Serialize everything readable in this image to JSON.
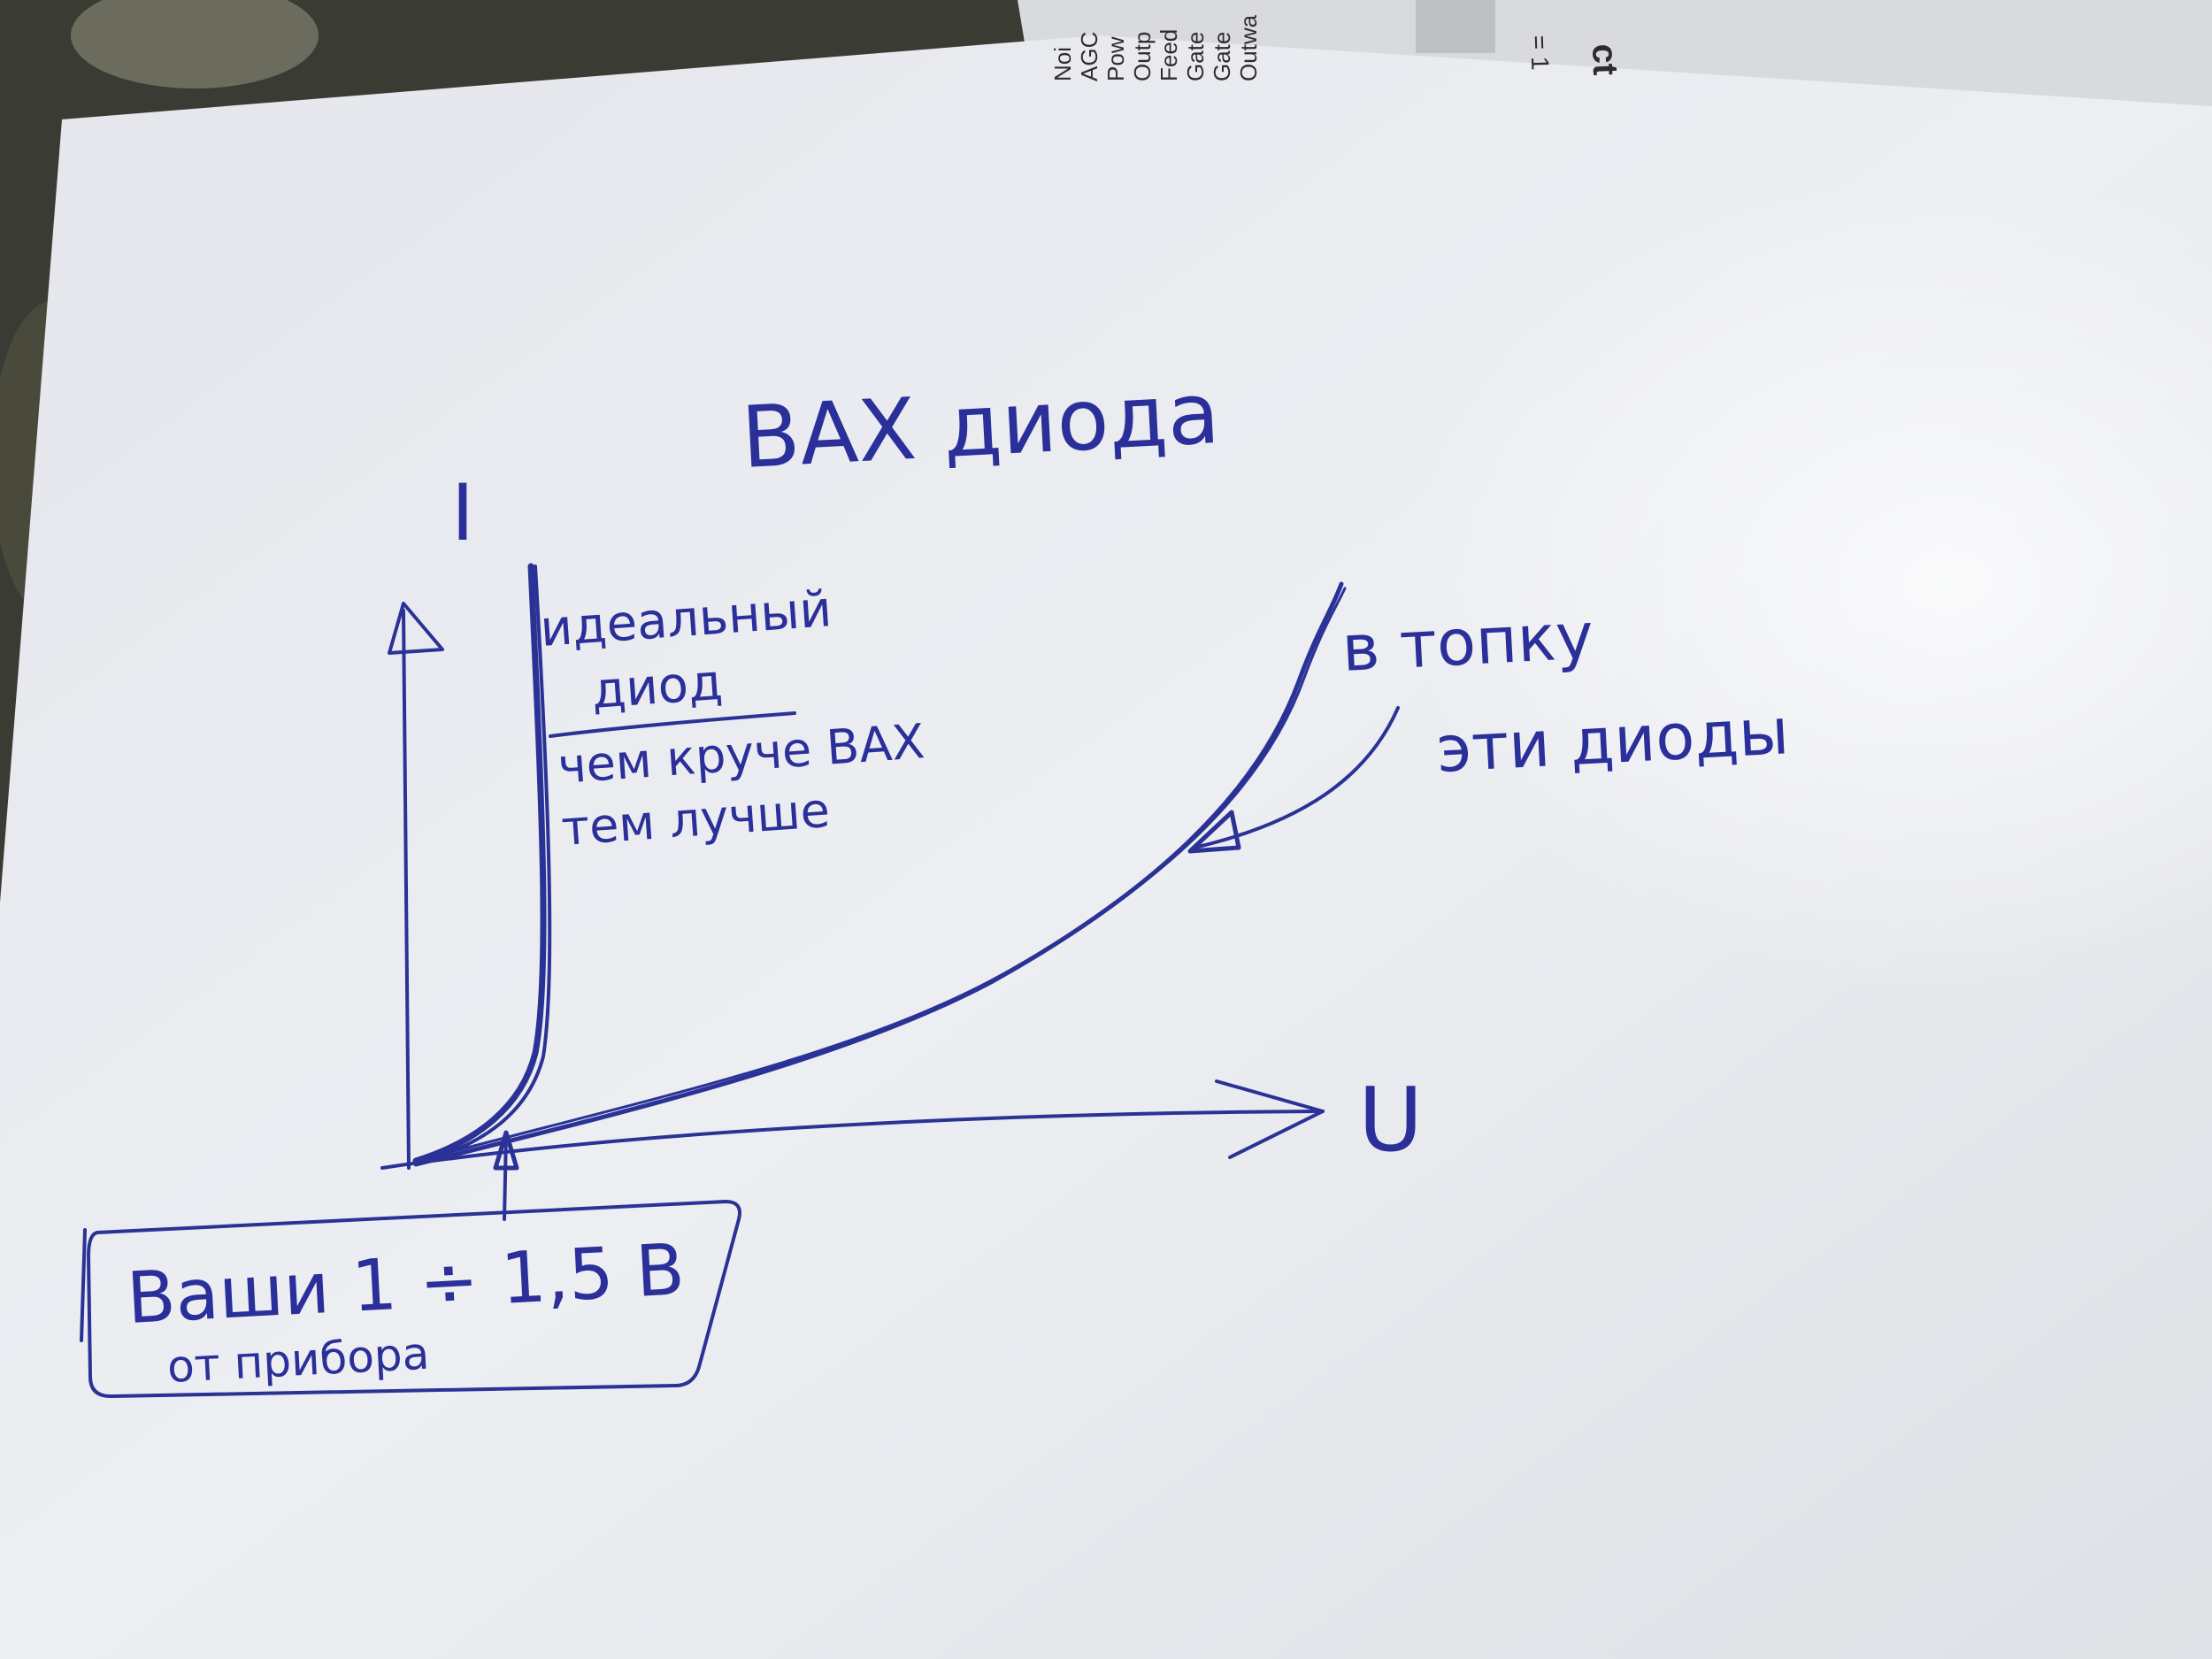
{
  "photo": {
    "background_color": "#3a3b33",
    "paper_color": "#e9ebf0",
    "ink_color": "#2b3296"
  },
  "printed_sheet": {
    "rotated_labels": [
      "Outwa",
      "Gate",
      "Gate",
      "Feed",
      "Outp",
      "Pow",
      "AGC",
      "Noi"
    ],
    "header_fragment": "ct",
    "equation_fragment": "= 1"
  },
  "sketch": {
    "title": "ВАХ диода",
    "y_axis_label": "I",
    "x_axis_label": "U",
    "ideal_note": {
      "line1": "идеальный",
      "line2": "диод",
      "line3": "чем круче ВАХ",
      "line4": "тем лучше"
    },
    "bad_note": {
      "line1": "в топку",
      "line2": "эти диоды"
    },
    "box_note": {
      "line1": "Ваши 1 ÷ 1,5 В",
      "line2": "от прибора"
    }
  }
}
